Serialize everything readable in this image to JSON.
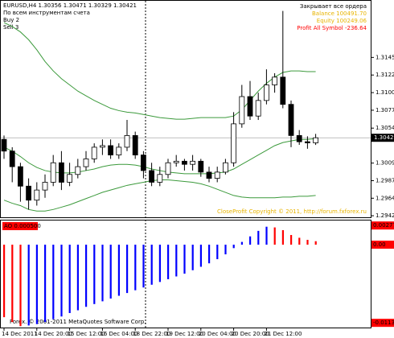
{
  "chart_data": [
    {
      "type": "candlestick",
      "title": "EURUSD,H4  1.30356 1.30471 1.30329 1.30421",
      "info_lines": [
        "По всем инструментам счета",
        "Buy 2",
        "Sell 3"
      ],
      "panel_lines": [
        {
          "text": "Закрывает  все ордера",
          "color": "#000000"
        },
        {
          "text": "Balance 100491.70",
          "color": "#e8b400"
        },
        {
          "text": "Equity 100249.06",
          "color": "#e8b400"
        },
        {
          "text": "Profit All Symbol -236.64",
          "color": "#ff0000"
        }
      ],
      "copyright": "CloseProfit Copyright © 2011, http://forum.fxforex.ru",
      "categories": [
        "14 Dec 2011",
        null,
        null,
        null,
        "14 Dec 20:00",
        null,
        null,
        null,
        "15 Dec 12:00",
        null,
        null,
        null,
        "16 Dec 04:00",
        null,
        null,
        null,
        "18 Dec 22:00",
        null,
        null,
        null,
        "19 Dec 12:00",
        null,
        null,
        null,
        "20 Dec 04:00",
        null,
        null,
        null,
        "20 Dec 20:00",
        null,
        null,
        null,
        "21 Dec 12:00",
        null,
        null,
        null,
        null,
        null,
        null
      ],
      "open": [
        1.304,
        1.3025,
        1.3005,
        1.298,
        1.2962,
        1.2975,
        1.2985,
        1.301,
        1.2985,
        1.2995,
        1.3005,
        1.3015,
        1.303,
        1.3032,
        1.302,
        1.303,
        1.3045,
        1.302,
        1.3,
        1.2985,
        1.2995,
        1.301,
        1.3012,
        1.3008,
        1.3012,
        1.2998,
        1.299,
        1.2998,
        1.301,
        1.306,
        1.3095,
        1.307,
        1.309,
        1.311,
        1.312,
        1.3085,
        1.3045,
        1.3037,
        1.30356
      ],
      "high": [
        1.3045,
        1.303,
        1.301,
        1.299,
        1.2985,
        1.2995,
        1.302,
        1.3025,
        1.301,
        1.3015,
        1.3025,
        1.3035,
        1.304,
        1.304,
        1.3035,
        1.3065,
        1.305,
        1.3025,
        1.301,
        1.3005,
        1.3015,
        1.302,
        1.3015,
        1.302,
        1.3015,
        1.3005,
        1.3005,
        1.3015,
        1.3075,
        1.311,
        1.3115,
        1.31,
        1.313,
        1.3125,
        1.3205,
        1.309,
        1.3052,
        1.3044,
        1.30471
      ],
      "low": [
        1.3015,
        1.2985,
        1.296,
        1.295,
        1.2955,
        1.2965,
        1.298,
        1.2975,
        1.298,
        1.299,
        1.3,
        1.301,
        1.302,
        1.3015,
        1.3015,
        1.3025,
        1.3015,
        1.299,
        1.298,
        1.298,
        1.299,
        1.3005,
        1.3,
        1.3,
        1.2992,
        1.2985,
        1.2985,
        1.2995,
        1.3005,
        1.3055,
        1.3065,
        1.3065,
        1.3085,
        1.31,
        1.308,
        1.303,
        1.3033,
        1.3028,
        1.30329
      ],
      "close": [
        1.3025,
        1.3005,
        1.298,
        1.2962,
        1.2975,
        1.2985,
        1.301,
        1.2985,
        1.2995,
        1.3005,
        1.3015,
        1.303,
        1.3032,
        1.302,
        1.303,
        1.3045,
        1.302,
        1.3,
        1.2985,
        1.2995,
        1.301,
        1.3012,
        1.3008,
        1.3012,
        1.2998,
        1.299,
        1.2998,
        1.301,
        1.306,
        1.3095,
        1.307,
        1.309,
        1.311,
        1.312,
        1.3085,
        1.3045,
        1.3037,
        1.30356,
        1.30421
      ],
      "up_color": "#ffffff",
      "down_color": "#000000",
      "outline_color": "#000000",
      "bands": {
        "color": "#3c9a3c",
        "upper": [
          1.319,
          1.3185,
          1.3178,
          1.3168,
          1.3155,
          1.314,
          1.3128,
          1.3118,
          1.311,
          1.3102,
          1.3096,
          1.309,
          1.3085,
          1.308,
          1.3077,
          1.3075,
          1.3074,
          1.3072,
          1.307,
          1.3068,
          1.3067,
          1.3066,
          1.3066,
          1.3067,
          1.3068,
          1.3068,
          1.3068,
          1.3068,
          1.307,
          1.3078,
          1.309,
          1.3102,
          1.3112,
          1.312,
          1.3126,
          1.3128,
          1.3128,
          1.3127,
          1.3127
        ],
        "middle": [
          1.303,
          1.3025,
          1.3018,
          1.301,
          1.3004,
          1.3,
          1.2998,
          1.2997,
          1.2997,
          1.2998,
          1.3,
          1.3002,
          1.3005,
          1.3007,
          1.3008,
          1.3008,
          1.3007,
          1.3005,
          1.3002,
          1.3,
          1.2998,
          1.2997,
          1.2996,
          1.2996,
          1.2996,
          1.2996,
          1.2997,
          1.2998,
          1.3002,
          1.3008,
          1.3014,
          1.302,
          1.3026,
          1.3032,
          1.3036,
          1.3038,
          1.304,
          1.304,
          1.3041
        ],
        "lower": [
          1.2962,
          1.2958,
          1.2955,
          1.295,
          1.2948,
          1.2948,
          1.295,
          1.2953,
          1.2956,
          1.296,
          1.2964,
          1.2968,
          1.2972,
          1.2975,
          1.2978,
          1.2981,
          1.2983,
          1.2985,
          1.2987,
          1.2988,
          1.2988,
          1.2987,
          1.2986,
          1.2985,
          1.2983,
          1.298,
          1.2976,
          1.2972,
          1.2968,
          1.2966,
          1.2965,
          1.2965,
          1.2965,
          1.2965,
          1.2966,
          1.2966,
          1.2967,
          1.2967,
          1.2968
        ]
      },
      "current_price": 1.30421,
      "ylim": [
        1.294,
        1.3218
      ],
      "yticks": [
        1.31453,
        1.31227,
        1.31001,
        1.30775,
        1.30545,
        1.30096,
        1.2987,
        1.29645,
        1.2942
      ]
    },
    {
      "type": "bar",
      "label": "AO 0.000500",
      "footer": "Forex. © 2001-2011 MetaQuotes Software Corp.",
      "values": [
        -0.0105,
        -0.0112,
        -0.0118,
        -0.0117,
        -0.0115,
        -0.0112,
        -0.0108,
        -0.0104,
        -0.0099,
        -0.0095,
        -0.009,
        -0.0086,
        -0.0082,
        -0.0078,
        -0.0074,
        -0.007,
        -0.0066,
        -0.0062,
        -0.0058,
        -0.0054,
        -0.005,
        -0.0046,
        -0.0042,
        -0.0037,
        -0.0032,
        -0.0027,
        -0.0021,
        -0.0014,
        -0.0005,
        0.0004,
        0.0012,
        0.002,
        0.0026,
        0.0025,
        0.0021,
        0.0014,
        0.001,
        0.0007,
        0.0005
      ],
      "colors": [
        "#ff0000",
        "#ff0000",
        "#ff0000",
        "#0000ff",
        "#0000ff",
        "#0000ff",
        "#0000ff",
        "#0000ff",
        "#0000ff",
        "#0000ff",
        "#0000ff",
        "#0000ff",
        "#0000ff",
        "#0000ff",
        "#0000ff",
        "#0000ff",
        "#0000ff",
        "#0000ff",
        "#0000ff",
        "#0000ff",
        "#0000ff",
        "#0000ff",
        "#0000ff",
        "#0000ff",
        "#0000ff",
        "#0000ff",
        "#0000ff",
        "#0000ff",
        "#0000ff",
        "#0000ff",
        "#0000ff",
        "#0000ff",
        "#0000ff",
        "#ff0000",
        "#ff0000",
        "#ff0000",
        "#ff0000",
        "#ff0000",
        "#ff0000"
      ],
      "ylim": [
        -0.012,
        0.0035
      ],
      "yticks": [
        0.002779,
        {
          "value": 0,
          "label": "0.00"
        },
        -0.01132
      ]
    }
  ]
}
